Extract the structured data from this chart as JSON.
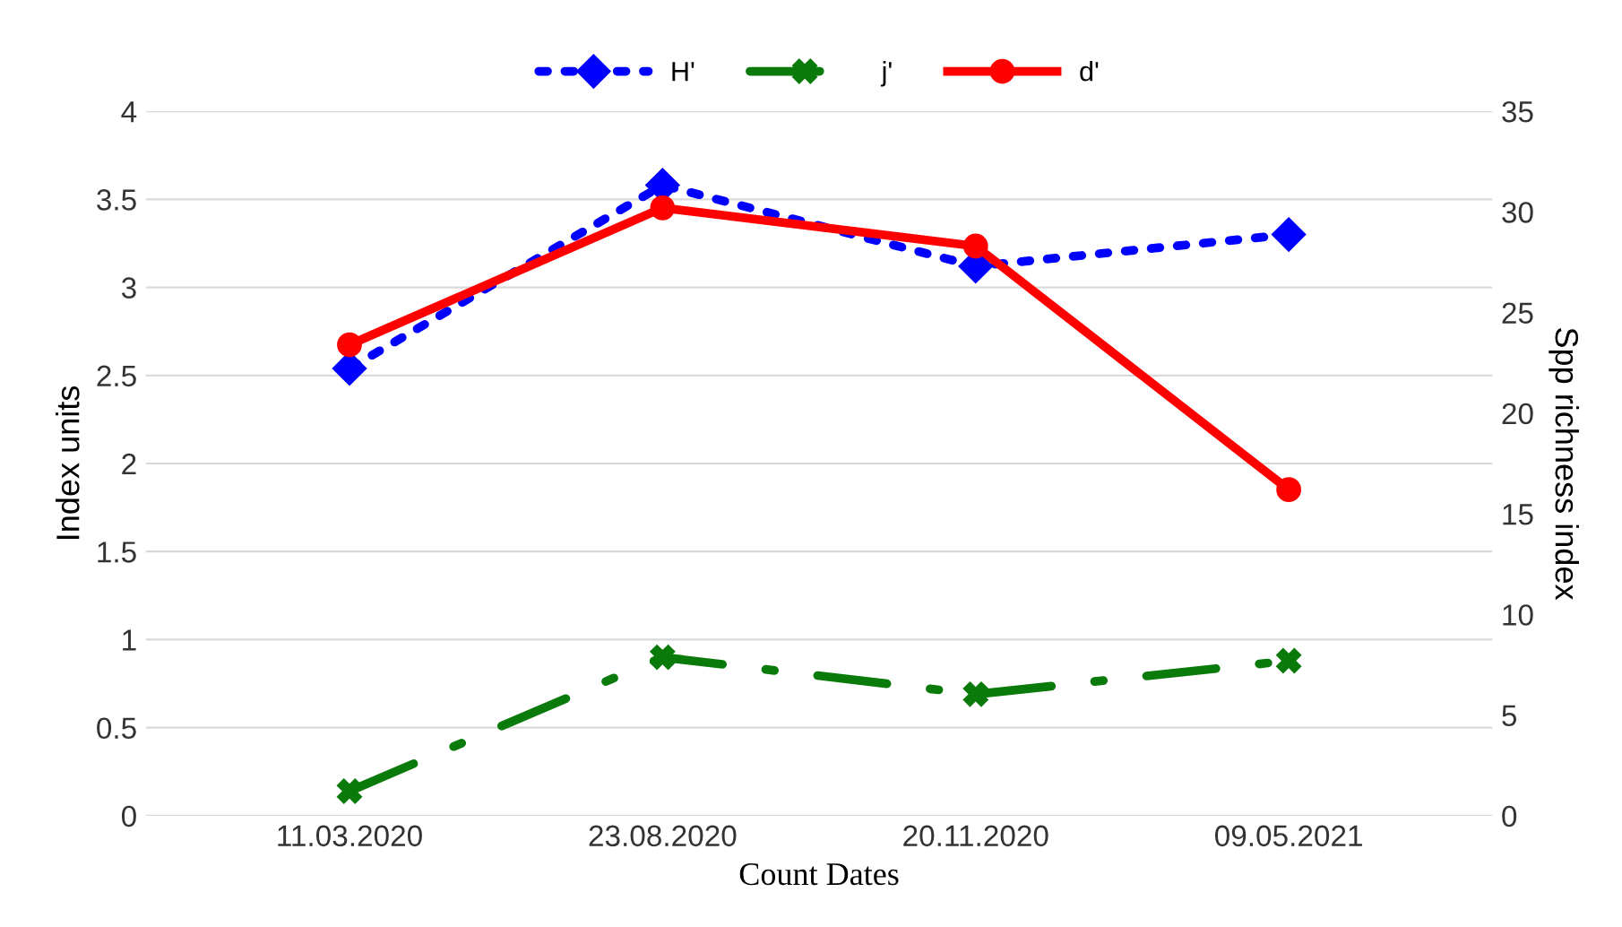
{
  "chart_data": {
    "type": "line",
    "xlabel": "Count Dates",
    "ylabel": "Index units",
    "y2label": "Spp richness index",
    "categories": [
      "11.03.2020",
      "23.08.2020",
      "20.11.2020",
      "09.05.2021"
    ],
    "series": [
      {
        "name": "H'",
        "color": "#0000ff",
        "values": [
          2.54,
          3.58,
          3.12,
          3.3
        ],
        "marker": "diamond",
        "line_style": "dotted"
      },
      {
        "name": "j'",
        "color": "#0a7a0a",
        "values": [
          0.14,
          0.9,
          0.69,
          0.88
        ],
        "marker": "cross",
        "line_style": "dashdot"
      },
      {
        "name": "d'",
        "color": "#ff0000",
        "values": [
          23.4,
          30.2,
          28.3,
          16.2
        ],
        "marker": "circle",
        "line_style": "solid",
        "axis": "y2"
      }
    ],
    "ylim": [
      0,
      4
    ],
    "yticks": [
      0,
      0.5,
      1,
      1.5,
      2,
      2.5,
      3,
      3.5,
      4
    ],
    "y2lim": [
      0,
      35
    ],
    "y2ticks": [
      0,
      5,
      10,
      15,
      20,
      25,
      30,
      35
    ],
    "grid": "y",
    "legend": "top"
  }
}
